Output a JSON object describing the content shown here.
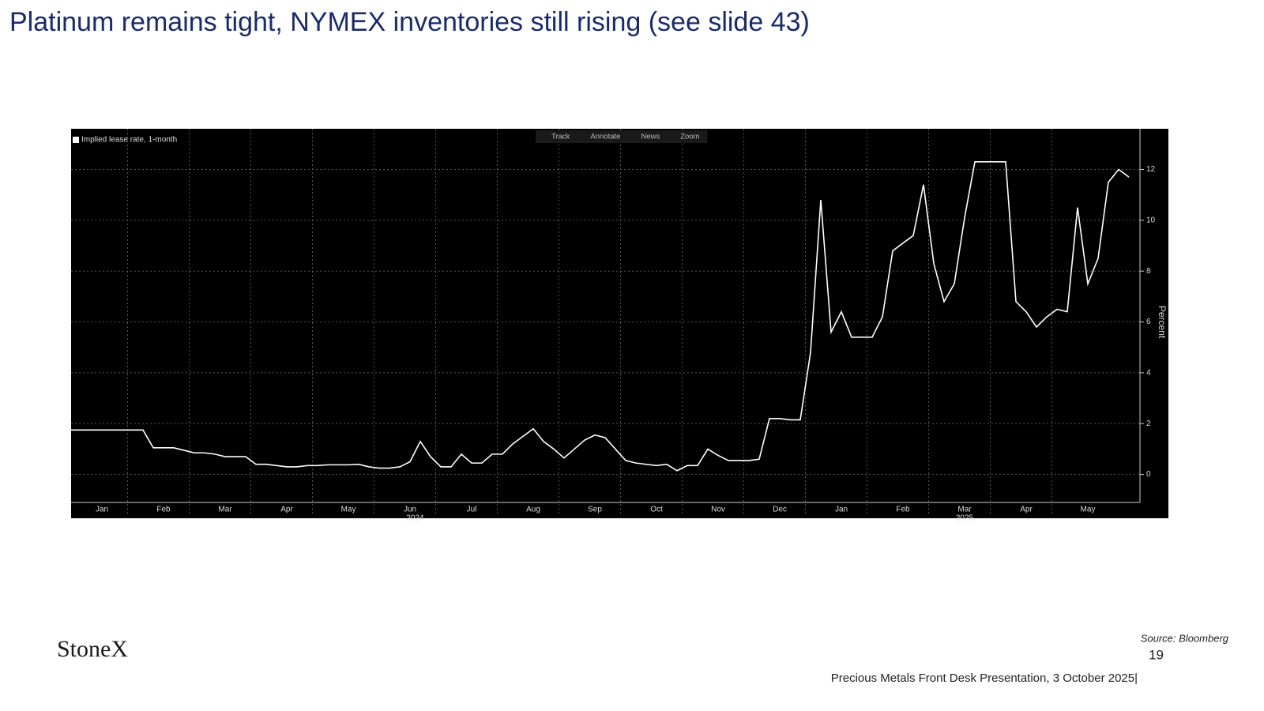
{
  "slide": {
    "title": "Platinum remains tight, NYMEX inventories still rising (see slide 43)",
    "logo": "StoneX",
    "source": "Source: Bloomberg",
    "page_number": "19",
    "footer": "Precious Metals Front Desk Presentation, 3 October 2025|"
  },
  "toolbar": [
    "Track",
    "Annotate",
    "News",
    "Zoom"
  ],
  "chart_data": {
    "type": "line",
    "categories": [
      null,
      null,
      null,
      "Jan",
      null,
      null,
      null,
      null,
      null,
      "Feb",
      null,
      null,
      null,
      null,
      null,
      "Mar",
      null,
      null,
      null,
      null,
      null,
      "Apr",
      null,
      null,
      null,
      null,
      null,
      "May",
      null,
      null,
      null,
      null,
      null,
      "Jun",
      null,
      null,
      null,
      null,
      null,
      "Jul",
      null,
      null,
      null,
      null,
      null,
      "Aug",
      null,
      null,
      null,
      null,
      null,
      "Sep",
      null,
      null,
      null,
      null,
      null,
      "Oct",
      null,
      null,
      null,
      null,
      null,
      "Nov",
      null,
      null,
      null,
      null,
      null,
      "Dec",
      null,
      null,
      null,
      null,
      null,
      "Jan",
      null,
      null,
      null,
      null,
      null,
      "Feb",
      null,
      null,
      null,
      null,
      null,
      "Mar",
      null,
      null,
      null,
      null,
      null,
      "Apr",
      null,
      null,
      null,
      null,
      null,
      "May",
      null,
      null,
      null,
      null
    ],
    "year_labels": [
      "2024",
      "2025"
    ],
    "series": [
      {
        "name": "Implied lease rate, 1-month",
        "color": "#ffffff",
        "values": [
          1.75,
          1.75,
          1.75,
          1.75,
          1.75,
          1.75,
          1.75,
          1.75,
          1.05,
          1.05,
          1.05,
          0.95,
          0.85,
          0.85,
          0.8,
          0.7,
          0.7,
          0.7,
          0.4,
          0.4,
          0.35,
          0.3,
          0.3,
          0.35,
          0.35,
          0.38,
          0.38,
          0.38,
          0.4,
          0.3,
          0.25,
          0.25,
          0.3,
          0.5,
          1.3,
          0.7,
          0.3,
          0.3,
          0.8,
          0.45,
          0.45,
          0.8,
          0.8,
          1.2,
          1.5,
          1.8,
          1.3,
          1.0,
          0.65,
          1.0,
          1.35,
          1.55,
          1.45,
          1.0,
          0.55,
          0.45,
          0.4,
          0.35,
          0.4,
          0.15,
          0.35,
          0.35,
          1.0,
          0.75,
          0.55,
          0.55,
          0.55,
          0.6,
          2.2,
          2.2,
          2.15,
          2.15,
          4.8,
          10.8,
          5.6,
          6.4,
          5.4,
          5.4,
          5.4,
          6.2,
          8.8,
          9.1,
          9.4,
          11.4,
          8.3,
          6.8,
          7.5,
          10.1,
          12.3,
          12.3,
          12.3,
          12.3,
          6.8,
          6.4,
          5.8,
          6.2,
          6.5,
          6.4,
          10.5,
          7.5,
          8.5,
          11.5,
          12.0,
          11.7
        ]
      }
    ],
    "y_axis_label": "Percent",
    "ylim": [
      -1.1,
      13.6
    ],
    "yticks": [
      0,
      2,
      4,
      6,
      8,
      10,
      12
    ],
    "grid": true,
    "legend": "top-left",
    "background": "#000000"
  }
}
